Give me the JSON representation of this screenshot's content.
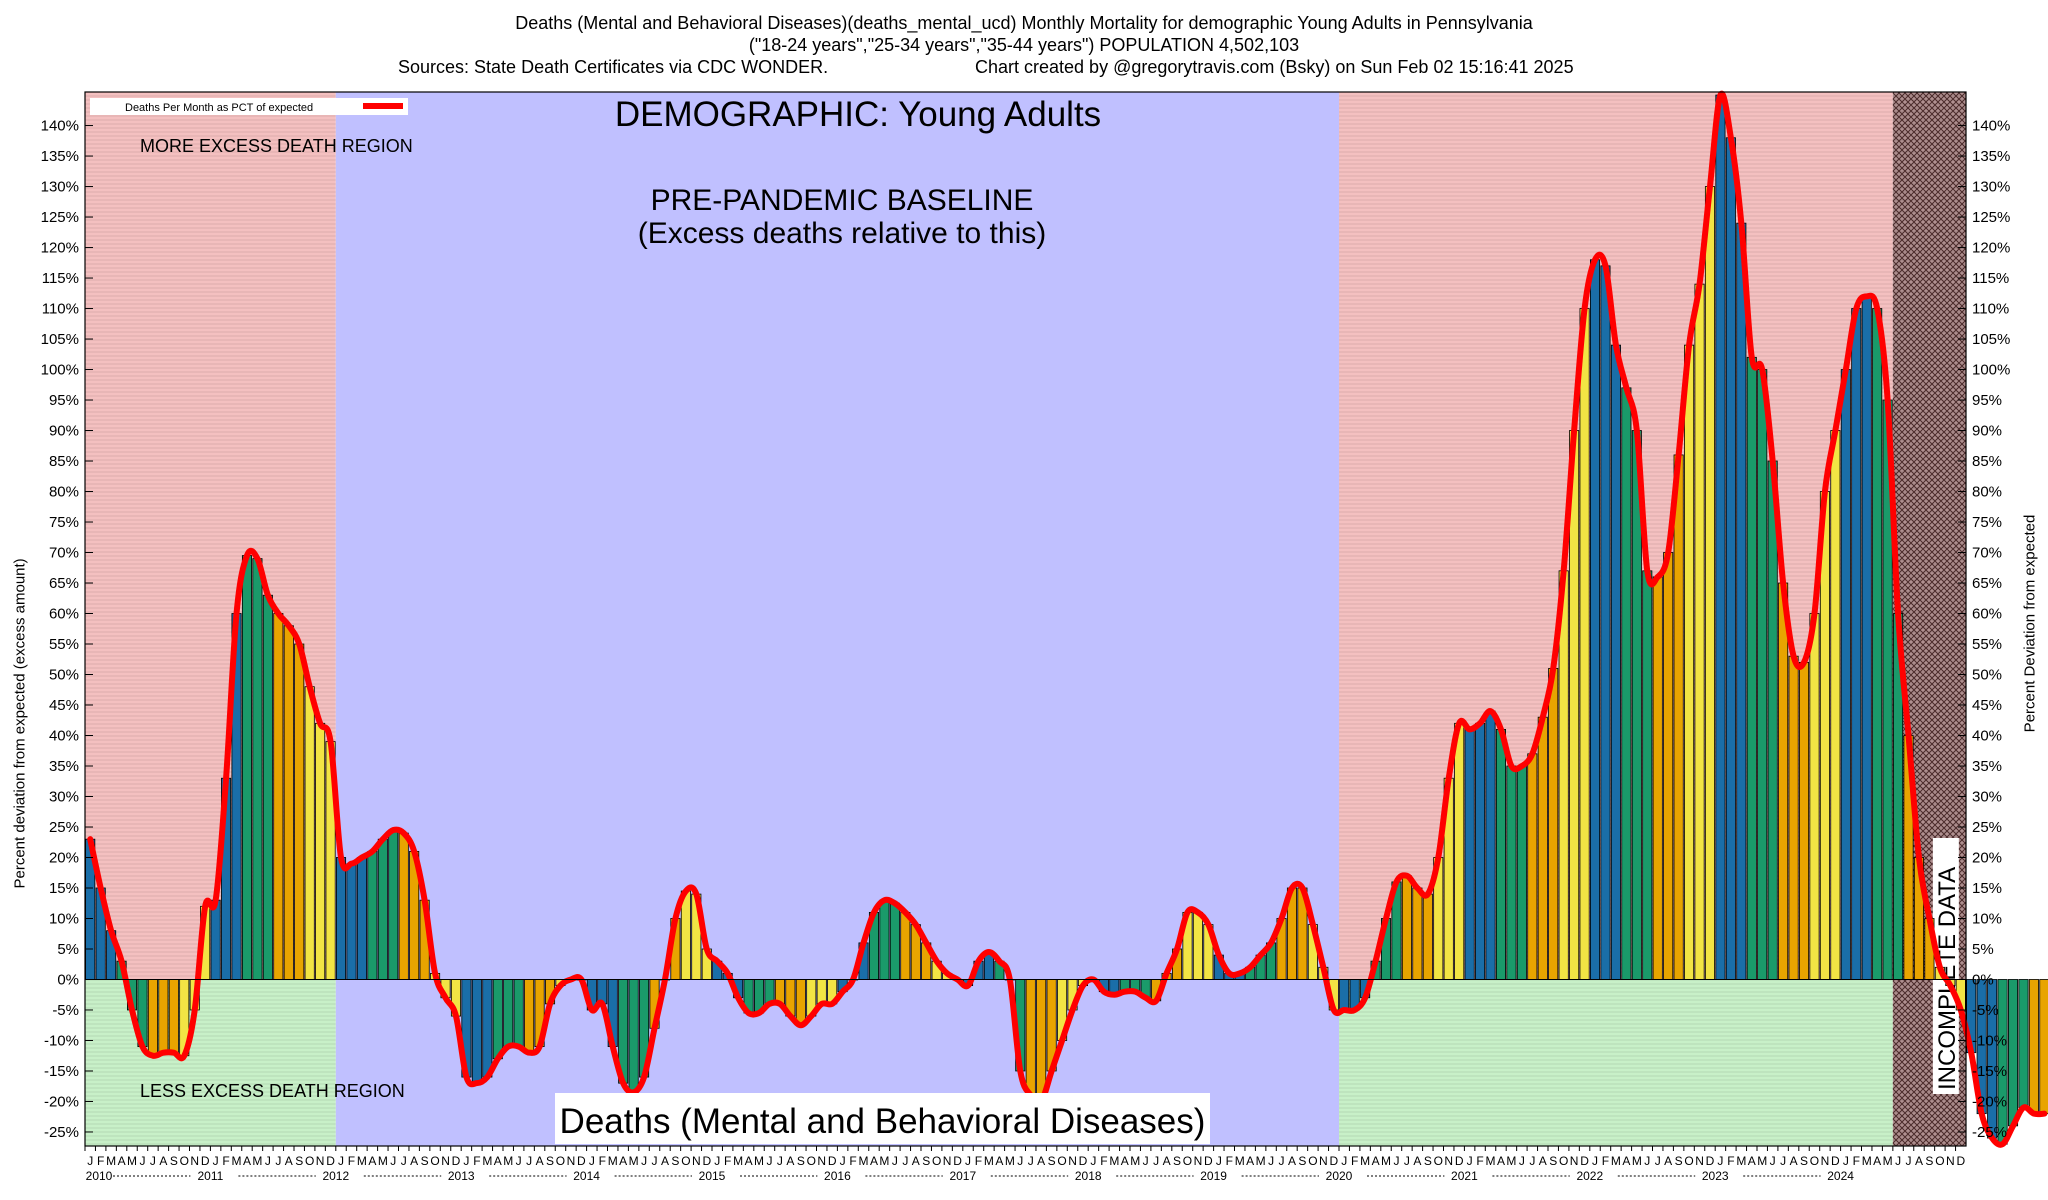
{
  "header": {
    "line1": "Deaths (Mental and Behavioral Diseases)(deaths_mental_ucd) Monthly Mortality for demographic Young Adults in Pennsylvania",
    "line2": "(\"18-24 years\",\"25-34 years\",\"35-44 years\") POPULATION 4,502,103",
    "line3_left": "Sources: State Death Certificates via CDC WONDER.",
    "line3_right": "Chart created by @gregorytravis.com (Bsky) on Sun Feb 02 15:16:41 2025"
  },
  "chart_data": {
    "type": "bar",
    "title": "DEMOGRAPHIC: Young Adults",
    "bottom_title": "Deaths (Mental and Behavioral Diseases)",
    "ylabel_left": "Percent deviation from expected (excess amount)",
    "ylabel_right": "Percent Deviation from expected",
    "legend": {
      "label": "Deaths Per Month as PCT of expected",
      "color": "#ff0000",
      "placement": "top-left"
    },
    "ylim": [
      -27,
      145
    ],
    "yticks": [
      -25,
      -20,
      -15,
      -10,
      -5,
      0,
      5,
      10,
      15,
      20,
      25,
      30,
      35,
      40,
      45,
      50,
      55,
      60,
      65,
      70,
      75,
      80,
      85,
      90,
      95,
      100,
      105,
      110,
      115,
      120,
      125,
      130,
      135,
      140
    ],
    "grid": true,
    "x_start": "2010-01",
    "years": [
      "2010",
      "2011",
      "2012",
      "2013",
      "2014",
      "2015",
      "2016",
      "2017",
      "2018",
      "2019",
      "2020",
      "2021",
      "2022",
      "2023",
      "2024"
    ],
    "month_letters": [
      "J",
      "F",
      "M",
      "A",
      "M",
      "J",
      "J",
      "A",
      "S",
      "O",
      "N",
      "D"
    ],
    "bar_colors": [
      "#1a6ea8",
      "#1a9a6a",
      "#e8a400",
      "#f2e444"
    ],
    "line_color": "#ff0000",
    "regions": [
      {
        "label": "MORE EXCESS DEATH REGION",
        "from": "2010-01",
        "to": "2012-01",
        "band": "above",
        "color": "#f4c0c0"
      },
      {
        "label": "LESS EXCESS DEATH REGION",
        "from": "2010-01",
        "to": "2012-01",
        "band": "below",
        "color": "#c8f0c8"
      },
      {
        "label": "PRE-PANDEMIC BASELINE\n(Excess deaths relative to this)",
        "from": "2012-01",
        "to": "2020-01",
        "band": "full",
        "color": "#c0c0ff"
      },
      {
        "label": "",
        "from": "2020-01",
        "to": "2024-06",
        "band": "above",
        "color": "#f4c0c0"
      },
      {
        "label": "",
        "from": "2020-01",
        "to": "2024-06",
        "band": "below",
        "color": "#c8f0c8"
      },
      {
        "label": "INCOMPLETE DATA",
        "from": "2024-06",
        "to": "2025-01",
        "band": "full",
        "color": "#b09090"
      }
    ],
    "values": [
      23,
      15,
      8,
      3,
      -5,
      -11,
      -12.5,
      -12,
      -12,
      -12.5,
      -5,
      12,
      13,
      33,
      60,
      69.5,
      69,
      63,
      60,
      58,
      55,
      48,
      42,
      39,
      20,
      19,
      20,
      21,
      23,
      24.5,
      24,
      21,
      13,
      1,
      -3,
      -6,
      -16,
      -17,
      -16,
      -13,
      -11,
      -11,
      -12,
      -11,
      -4,
      -1,
      0,
      0,
      -5,
      -4,
      -11,
      -17,
      -18.5,
      -16,
      -8,
      0,
      10,
      14.5,
      14,
      5,
      3,
      1,
      -3,
      -5.5,
      -5.5,
      -4,
      -4,
      -6,
      -7.5,
      -6,
      -4,
      -4,
      -2,
      0,
      6,
      11,
      13,
      12.5,
      11,
      9,
      6,
      3,
      1,
      0,
      -1,
      3,
      4.5,
      3,
      0,
      -15,
      -19,
      -20,
      -15,
      -10,
      -5,
      -1,
      0,
      -2,
      -2.5,
      -2,
      -2,
      -3,
      -3.5,
      1,
      5,
      11,
      11,
      9,
      4,
      1,
      1,
      2,
      4,
      6,
      10,
      15,
      15,
      9,
      2,
      -5,
      -5,
      -5,
      -3,
      3,
      10,
      16,
      17,
      15,
      14,
      20,
      33,
      42,
      41,
      42,
      44,
      41,
      35,
      35,
      37,
      43,
      51,
      67,
      90,
      110,
      118,
      117,
      104,
      97,
      90,
      67,
      66,
      70,
      86,
      104,
      114,
      130,
      145,
      138,
      124,
      102,
      100,
      85,
      65,
      53,
      52,
      60,
      80,
      90,
      100,
      110,
      112,
      110,
      95,
      60,
      40,
      20,
      10,
      2,
      -1,
      -5,
      -12,
      -22,
      -26,
      -27,
      -24,
      -21,
      -22,
      -22
    ]
  }
}
